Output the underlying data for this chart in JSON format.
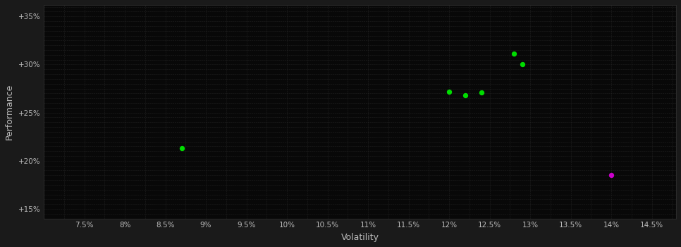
{
  "background_color": "#1a1a1a",
  "plot_bg_color": "#080808",
  "grid_color": "#2a2a2a",
  "text_color": "#bbbbbb",
  "xlabel": "Volatility",
  "ylabel": "Performance",
  "title": "",
  "xlim": [
    0.07,
    0.148
  ],
  "ylim": [
    0.14,
    0.362
  ],
  "xticks_major": [
    0.075,
    0.08,
    0.085,
    0.09,
    0.095,
    0.1,
    0.105,
    0.11,
    0.115,
    0.12,
    0.125,
    0.13,
    0.135,
    0.14,
    0.145
  ],
  "xtick_labels": [
    "7.5%",
    "8%",
    "8.5%",
    "9%",
    "9.5%",
    "10%",
    "10.5%",
    "11%",
    "11.5%",
    "12%",
    "12.5%",
    "13%",
    "13.5%",
    "14%",
    "14.5%"
  ],
  "yticks_major": [
    0.15,
    0.2,
    0.25,
    0.3,
    0.35
  ],
  "ytick_labels": [
    "+15%",
    "+20%",
    "+25%",
    "+30%",
    "+35%"
  ],
  "points_green": [
    [
      0.087,
      0.213
    ],
    [
      0.12,
      0.272
    ],
    [
      0.122,
      0.268
    ],
    [
      0.124,
      0.271
    ],
    [
      0.128,
      0.311
    ],
    [
      0.129,
      0.3
    ]
  ],
  "points_magenta": [
    [
      0.14,
      0.185
    ]
  ],
  "green_color": "#00dd00",
  "magenta_color": "#cc00cc",
  "marker_size": 28
}
